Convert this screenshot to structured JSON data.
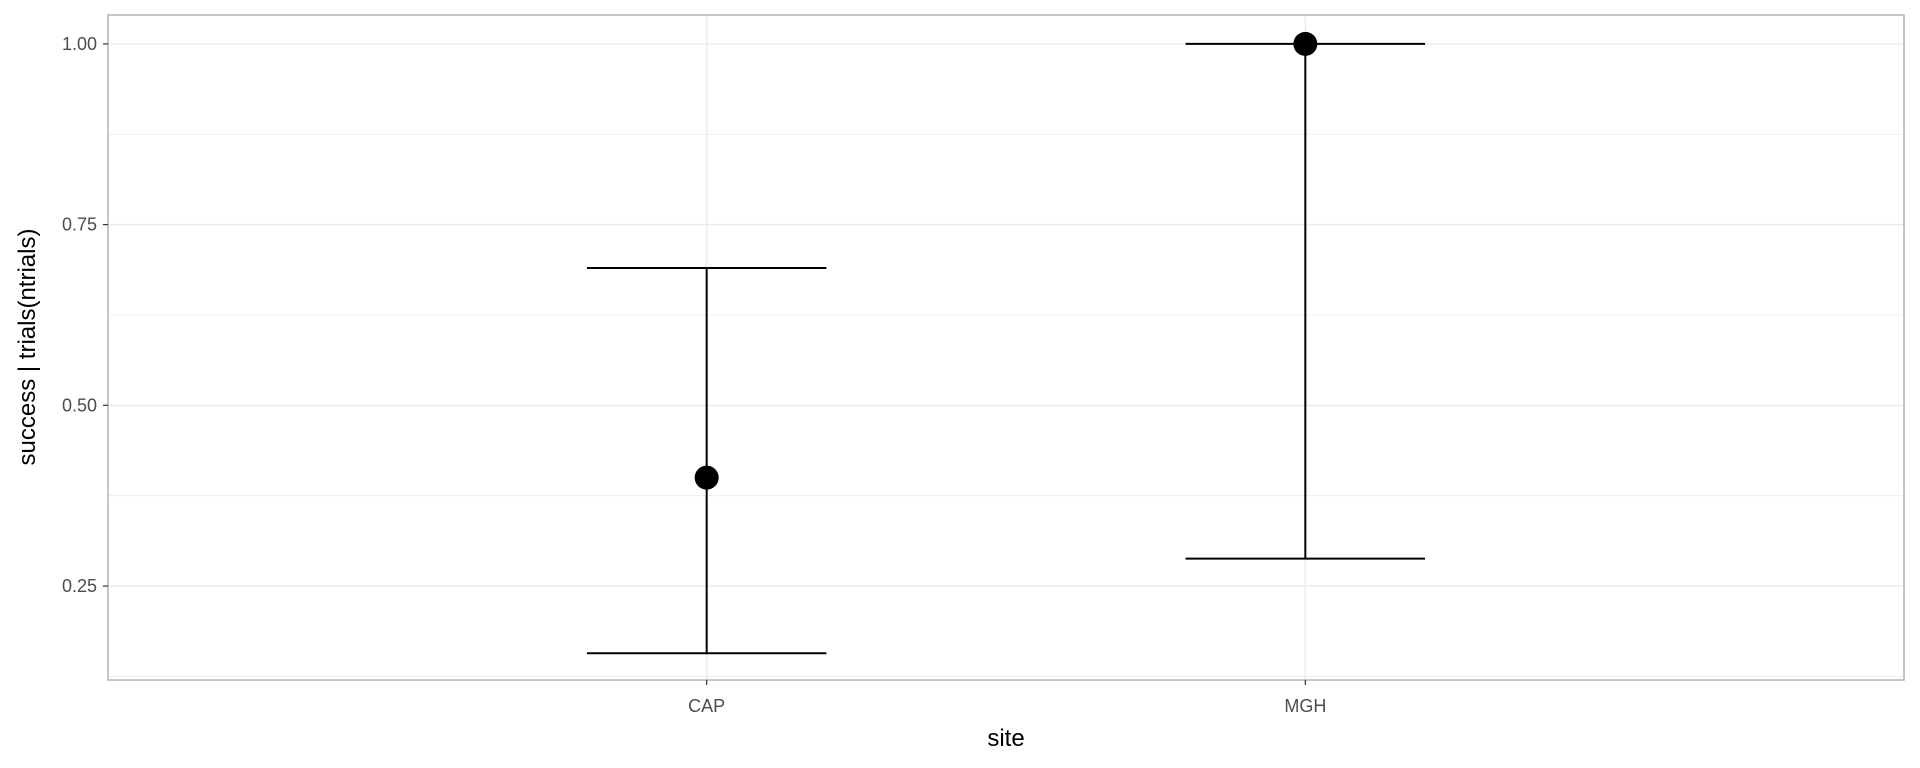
{
  "chart_data": {
    "type": "scatter",
    "title": "",
    "xlabel": "site",
    "ylabel": "success | trials(ntrials)",
    "categories": [
      "CAP",
      "MGH"
    ],
    "series": [
      {
        "estimate": [
          0.4,
          1.0
        ],
        "lower": [
          0.157,
          0.288
        ],
        "upper": [
          0.69,
          1.0
        ]
      }
    ],
    "ylim": [
      0.12,
      1.04
    ],
    "yticks": [
      0.25,
      0.5,
      0.75,
      1.0
    ],
    "ytick_labels": [
      "0.25",
      "0.50",
      "0.75",
      "1.00"
    ],
    "grid": true,
    "legend": "none",
    "colors": {
      "marks": "#000000",
      "grid": "#ebebeb",
      "panel_border": "#b3b3b3",
      "tick_text": "#4d4d4d"
    }
  }
}
